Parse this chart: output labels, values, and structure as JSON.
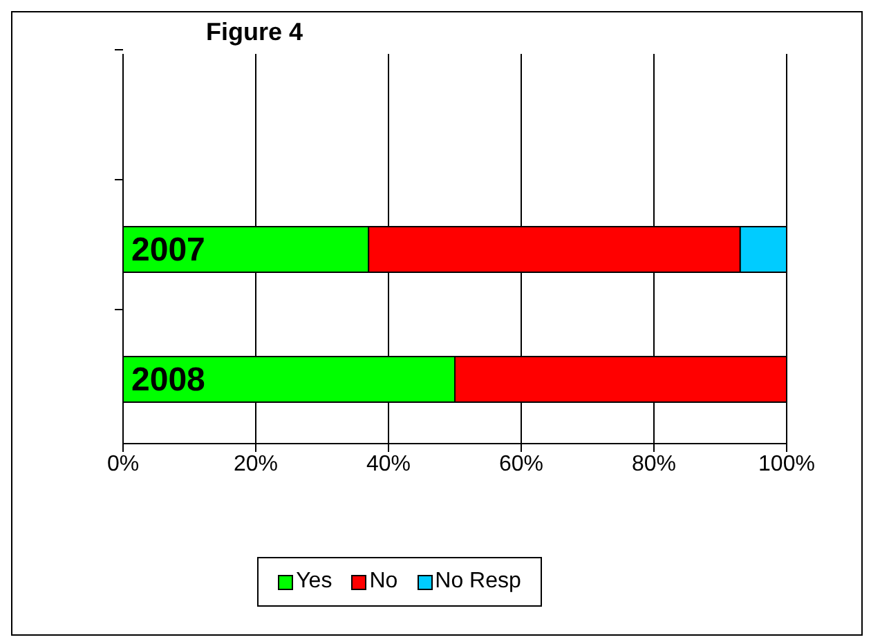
{
  "chart_data": {
    "type": "bar",
    "orientation": "horizontal",
    "stacked": true,
    "title": "Figure 4",
    "categories": [
      null,
      "2007",
      "2008"
    ],
    "series": [
      {
        "name": "Yes",
        "color": "#00ff00",
        "values": [
          null,
          37,
          50
        ]
      },
      {
        "name": "No",
        "color": "#ff0000",
        "values": [
          null,
          56,
          50
        ]
      },
      {
        "name": "No Resp",
        "color": "#00ccff",
        "values": [
          null,
          7,
          0
        ]
      }
    ],
    "xlim": [
      0,
      100
    ],
    "xticks": [
      {
        "value": 0,
        "label": "0%"
      },
      {
        "value": 20,
        "label": "20%"
      },
      {
        "value": 40,
        "label": "40%"
      },
      {
        "value": 60,
        "label": "60%"
      },
      {
        "value": 80,
        "label": "80%"
      },
      {
        "value": 100,
        "label": "100%"
      }
    ],
    "grid": "x",
    "legend": "bottom"
  }
}
